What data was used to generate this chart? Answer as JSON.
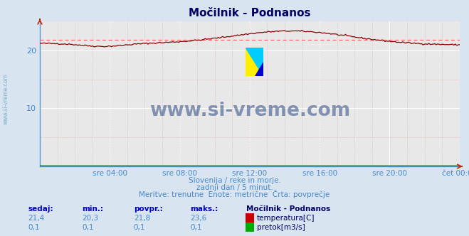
{
  "title": "Močilnik - Podnanos",
  "bg_color": "#d8e4f0",
  "plot_bg_color": "#e8e8e8",
  "grid_major_color": "#ffffff",
  "grid_minor_color": "#e8b8b8",
  "line_color_temp": "#880000",
  "line_color_flow": "#007700",
  "avg_line_color": "#ff6666",
  "xlabel_color": "#4488cc",
  "title_color": "#000066",
  "x_tick_labels": [
    "sre 04:00",
    "sre 08:00",
    "sre 12:00",
    "sre 16:00",
    "sre 20:00",
    "čet 00:00"
  ],
  "x_tick_positions": [
    0.1667,
    0.3333,
    0.5,
    0.6667,
    0.8333,
    1.0
  ],
  "ylim_min": 0,
  "ylim_max": 25,
  "ytick_vals": [
    10,
    20
  ],
  "temp_avg": 21.8,
  "temp_min": 20.3,
  "temp_max": 23.6,
  "temp_current": 21.4,
  "flow_val": 0.1,
  "subtitle1": "Slovenija / reke in morje.",
  "subtitle2": "zadnji dan / 5 minut.",
  "subtitle3": "Meritve: trenutne  Enote: metrične  Črta: povprečje",
  "legend_title": "Močilnik - Podnanos",
  "watermark": "www.si-vreme.com",
  "watermark_color": "#1a3a7a",
  "left_label": "www.si-vreme.com",
  "n_points": 288
}
